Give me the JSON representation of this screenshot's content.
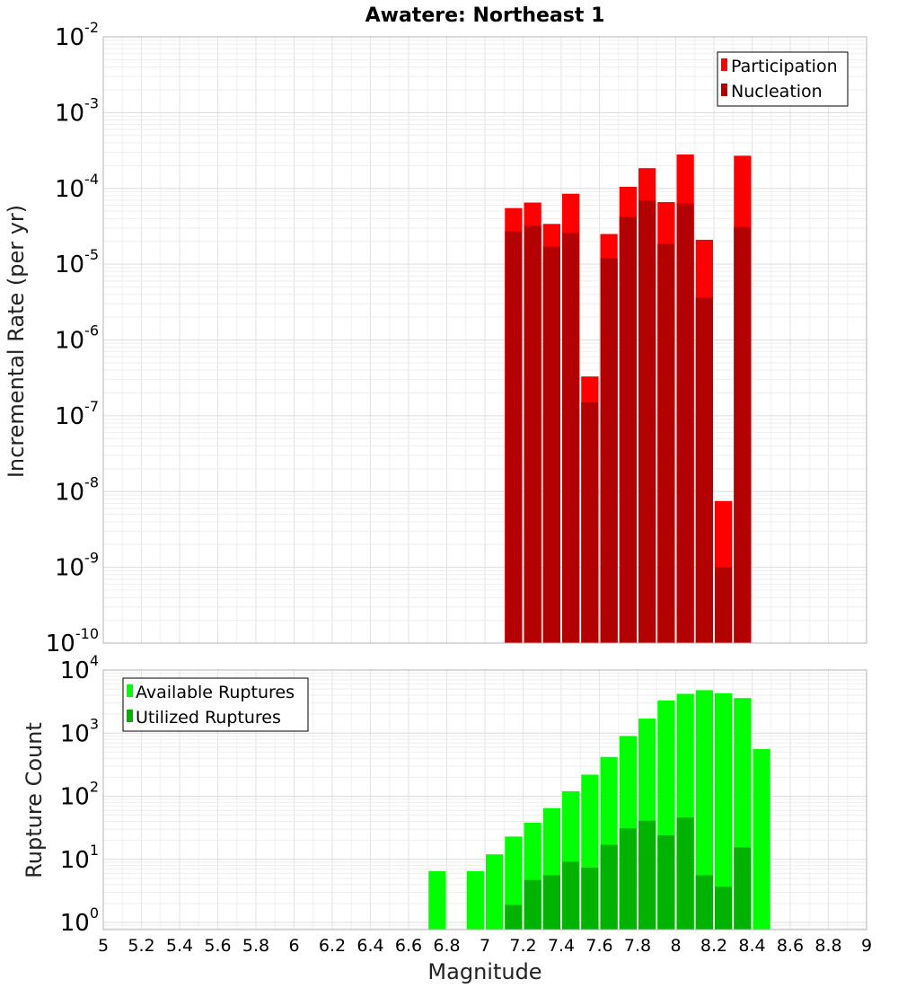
{
  "chart_data": [
    {
      "type": "bar",
      "title": "Awatere: Northeast 1",
      "xlabel": "Magnitude",
      "ylabel": "Incremental Rate (per yr)",
      "y_scale": "log",
      "ylim": [
        1e-10,
        0.01
      ],
      "xlim": [
        5,
        9
      ],
      "grid": true,
      "legend_position": "top-right",
      "bin_width": 0.1,
      "x": [
        7.15,
        7.25,
        7.35,
        7.45,
        7.55,
        7.65,
        7.75,
        7.85,
        7.95,
        8.05,
        8.15,
        8.25,
        8.35
      ],
      "series": [
        {
          "name": "Participation",
          "color": "#ff0000",
          "values": [
            5.5e-05,
            6.5e-05,
            3.4e-05,
            8.5e-05,
            3.3e-07,
            2.5e-05,
            0.000105,
            0.000185,
            6.6e-05,
            0.00028,
            2.1e-05,
            7.5e-09,
            0.00027
          ]
        },
        {
          "name": "Nucleation",
          "color": "#b30000",
          "values": [
            2.7e-05,
            3.2e-05,
            1.7e-05,
            2.6e-05,
            1.5e-07,
            1.2e-05,
            4.2e-05,
            7e-05,
            1.85e-05,
            6.3e-05,
            3.6e-06,
            1e-09,
            3.1e-05
          ]
        }
      ]
    },
    {
      "type": "bar",
      "xlabel": "Magnitude",
      "ylabel": "Rupture Count",
      "y_scale": "log",
      "ylim": [
        0.77,
        10000.0
      ],
      "xlim": [
        5,
        9
      ],
      "grid": true,
      "legend_position": "top-left",
      "bin_width": 0.1,
      "series": [
        {
          "name": "Available Ruptures",
          "color": "#00ff00",
          "x": [
            6.75,
            6.95,
            7.05,
            7.15,
            7.25,
            7.35,
            7.45,
            7.55,
            7.65,
            7.75,
            7.85,
            7.95,
            8.05,
            8.15,
            8.25,
            8.35,
            8.45
          ],
          "values": [
            6.5,
            6.5,
            12,
            23,
            38,
            65,
            120,
            220,
            420,
            900,
            1700,
            3300,
            4200,
            4800,
            4300,
            3600,
            560
          ]
        },
        {
          "name": "Utilized Ruptures",
          "color": "#00b300",
          "x": [
            7.15,
            7.25,
            7.35,
            7.45,
            7.55,
            7.65,
            7.75,
            7.85,
            7.95,
            8.05,
            8.15,
            8.25,
            8.35
          ],
          "values": [
            1.9,
            4.7,
            5.6,
            9.2,
            7.4,
            17,
            31,
            41,
            24,
            46,
            5.6,
            3.7,
            15.5
          ]
        }
      ]
    }
  ],
  "x_ticks": [
    "5",
    "5.2",
    "5.4",
    "5.6",
    "5.8",
    "6",
    "6.2",
    "6.4",
    "6.6",
    "6.8",
    "7",
    "7.2",
    "7.4",
    "7.6",
    "7.8",
    "8",
    "8.2",
    "8.4",
    "8.6",
    "8.8",
    "9"
  ],
  "top_y_ticks": [
    -10,
    -9,
    -8,
    -7,
    -6,
    -5,
    -4,
    -3,
    -2
  ],
  "bottom_y_ticks": [
    0,
    1,
    2,
    3,
    4
  ]
}
